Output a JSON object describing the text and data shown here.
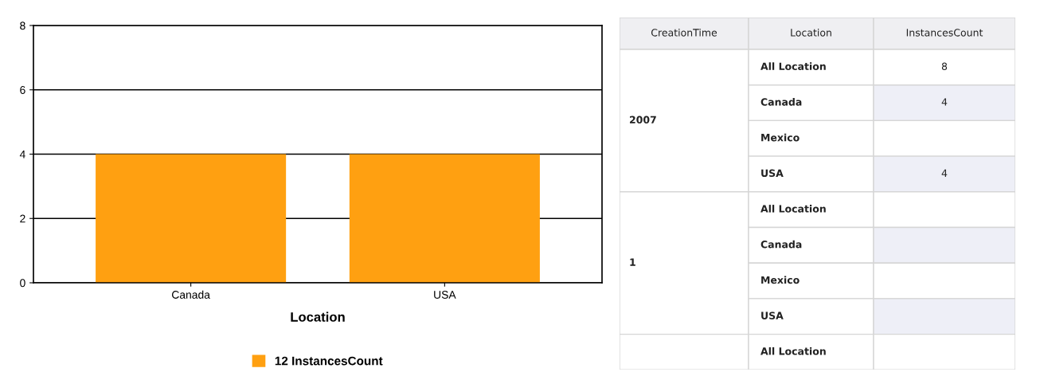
{
  "chart_data": [
    {
      "type": "bar",
      "categories": [
        "Canada",
        "USA"
      ],
      "xlabel": "Location",
      "series": [
        {
          "name": "12 InstancesCount",
          "color": "#ffa011",
          "values": [
            4,
            4
          ]
        }
      ],
      "ylim": [
        0,
        8
      ],
      "yticks": [
        0,
        2,
        4,
        6,
        8
      ],
      "grid": "y",
      "legend": "bottom"
    },
    {
      "type": "other",
      "categories": [
        "CreationTime",
        "Location",
        "InstancesCount"
      ],
      "cell_labels": [
        [
          "2007",
          "All Location",
          "8"
        ],
        [
          null,
          "Canada",
          "4"
        ],
        [
          null,
          "Mexico",
          null
        ],
        [
          null,
          "USA",
          "4"
        ],
        [
          "1",
          "All Location",
          null
        ],
        [
          null,
          "Canada",
          null
        ],
        [
          null,
          "Mexico",
          null
        ],
        [
          null,
          "USA",
          null
        ],
        [
          null,
          "All Location",
          null
        ]
      ]
    }
  ]
}
